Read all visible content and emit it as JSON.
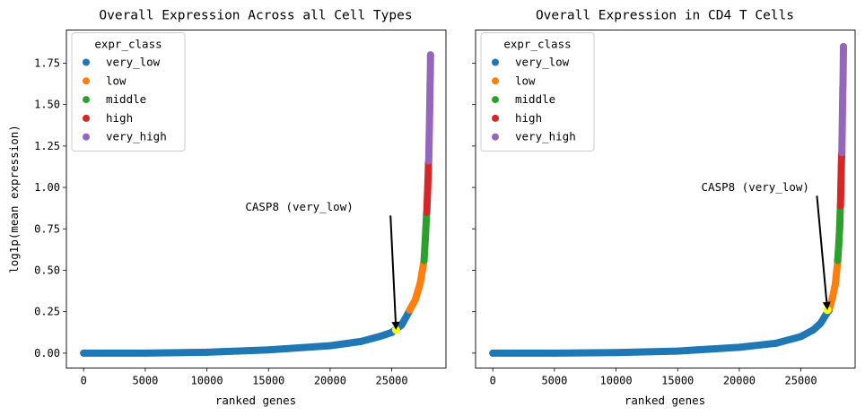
{
  "chart_data": [
    {
      "type": "scatter",
      "title": "Overall Expression Across all Cell Types",
      "xlabel": "ranked genes",
      "ylabel": "log1p(mean expression)",
      "xlim": [
        -1400,
        29400
      ],
      "ylim": [
        -0.09,
        1.95
      ],
      "xticks": [
        0,
        5000,
        10000,
        15000,
        20000,
        25000
      ],
      "xtick_labels": [
        "0",
        "5000",
        "10000",
        "15000",
        "20000",
        "25000"
      ],
      "yticks": [
        0.0,
        0.25,
        0.5,
        0.75,
        1.0,
        1.25,
        1.5,
        1.75
      ],
      "ytick_labels": [
        "0.00",
        "0.25",
        "0.50",
        "0.75",
        "1.00",
        "1.25",
        "1.50",
        "1.75"
      ],
      "grid": false,
      "legend": {
        "title": "expr_class",
        "placement": "top-left"
      },
      "series": [
        {
          "name": "very_low",
          "color": "#1f77b4",
          "x": [
            0,
            5000,
            10000,
            15000,
            20000,
            22500,
            24000,
            25000,
            25800,
            26400
          ],
          "y": [
            0.0,
            0.0,
            0.005,
            0.02,
            0.045,
            0.07,
            0.1,
            0.125,
            0.17,
            0.25
          ]
        },
        {
          "name": "low",
          "color": "#ff7f0e",
          "x": [
            26450,
            26900,
            27300,
            27600
          ],
          "y": [
            0.26,
            0.32,
            0.42,
            0.55
          ]
        },
        {
          "name": "middle",
          "color": "#2ca02c",
          "x": [
            27620,
            27720,
            27830
          ],
          "y": [
            0.56,
            0.68,
            0.84
          ]
        },
        {
          "name": "high",
          "color": "#d62728",
          "x": [
            27840,
            27920,
            27990
          ],
          "y": [
            0.85,
            1.0,
            1.15
          ]
        },
        {
          "name": "very_high",
          "color": "#9467bd",
          "x": [
            28000,
            28050,
            28090,
            28110,
            28130,
            28150
          ],
          "y": [
            1.16,
            1.35,
            1.5,
            1.62,
            1.69,
            1.8
          ]
        }
      ],
      "highlight": {
        "x": 25350,
        "y": 0.14,
        "color": "#ffff00"
      },
      "annotation": {
        "text": "CASP8 (very_low)",
        "text_x": 17500,
        "text_y": 0.86,
        "arrow_from": [
          24900,
          0.83
        ],
        "arrow_to": [
          25350,
          0.14
        ]
      }
    },
    {
      "type": "scatter",
      "title": "Overall Expression in CD4 T Cells",
      "xlabel": "ranked genes",
      "ylabel": "",
      "xlim": [
        -1400,
        29400
      ],
      "ylim": [
        -0.09,
        1.95
      ],
      "xticks": [
        0,
        5000,
        10000,
        15000,
        20000,
        25000
      ],
      "xtick_labels": [
        "0",
        "5000",
        "10000",
        "15000",
        "20000",
        "25000"
      ],
      "yticks": [
        0.0,
        0.25,
        0.5,
        0.75,
        1.0,
        1.25,
        1.5,
        1.75
      ],
      "ytick_labels": [],
      "grid": false,
      "legend": {
        "title": "expr_class",
        "placement": "top-left"
      },
      "series": [
        {
          "name": "very_low",
          "color": "#1f77b4",
          "x": [
            0,
            5000,
            10000,
            15000,
            20000,
            23000,
            25000,
            26000,
            26600,
            27100,
            27300
          ],
          "y": [
            0.0,
            0.0,
            0.003,
            0.012,
            0.035,
            0.06,
            0.1,
            0.14,
            0.18,
            0.24,
            0.26
          ]
        },
        {
          "name": "low",
          "color": "#ff7f0e",
          "x": [
            27320,
            27550,
            27800,
            27980
          ],
          "y": [
            0.27,
            0.33,
            0.42,
            0.55
          ]
        },
        {
          "name": "middle",
          "color": "#2ca02c",
          "x": [
            27990,
            28070,
            28150,
            28200
          ],
          "y": [
            0.56,
            0.65,
            0.76,
            0.88
          ]
        },
        {
          "name": "high",
          "color": "#d62728",
          "x": [
            28210,
            28240,
            28280,
            28310
          ],
          "y": [
            0.89,
            1.0,
            1.12,
            1.2
          ]
        },
        {
          "name": "very_high",
          "color": "#9467bd",
          "x": [
            28320,
            28350,
            28380,
            28400,
            28420,
            28450
          ],
          "y": [
            1.21,
            1.35,
            1.5,
            1.6,
            1.62,
            1.85
          ]
        }
      ],
      "highlight": {
        "x": 27150,
        "y": 0.26,
        "color": "#ffff00"
      },
      "annotation": {
        "text": "CASP8 (very_low)",
        "text_x": 21300,
        "text_y": 0.98,
        "arrow_from": [
          26300,
          0.95
        ],
        "arrow_to": [
          27150,
          0.26
        ]
      }
    }
  ]
}
